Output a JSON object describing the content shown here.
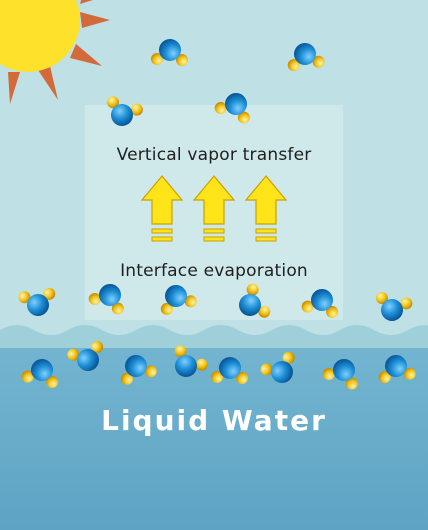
{
  "labels": {
    "vertical_transfer": "Vertical vapor transfer",
    "interface_evaporation": "Interface evaporation",
    "liquid_water": "Liquid Water"
  },
  "icons": [
    "sun-icon",
    "water-molecule-icon",
    "up-arrow-icon"
  ],
  "colors": {
    "sky": "#bfe1e6",
    "sky_panel": "#cfe8ea",
    "interface_water": "#9fd0da",
    "liquid_water": "#6aaecb",
    "sun_body": "#fde12a",
    "sun_rays": "#d26a3a",
    "oxygen": "#1e8fd6",
    "hydrogen": "#f2c21a",
    "arrow_fill": "#ffe419",
    "arrow_stroke": "#c9a100",
    "label_text": "#1f1f1f",
    "liquid_label_text": "#ffffff"
  }
}
